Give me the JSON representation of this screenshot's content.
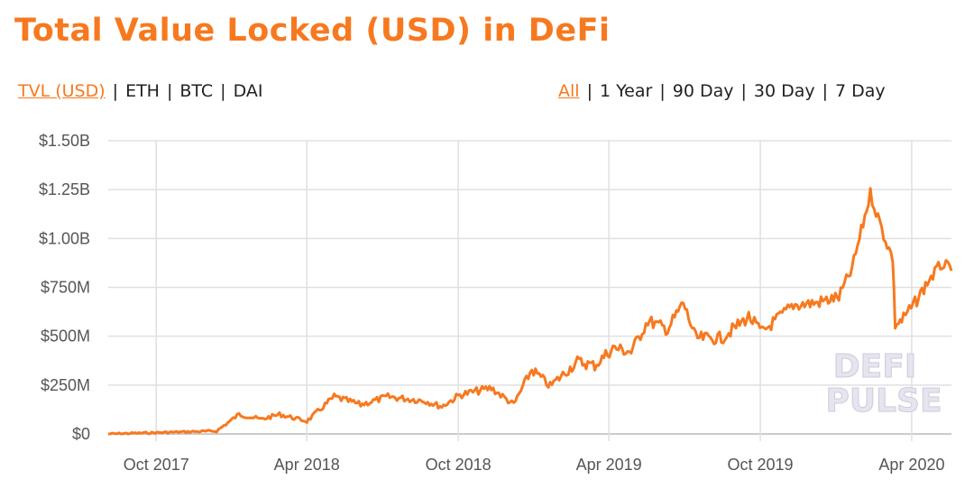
{
  "title": "Total Value Locked (USD) in DeFi",
  "metric_tabs": [
    "TVL (USD)",
    "ETH",
    "BTC",
    "DAI"
  ],
  "metric_active": 0,
  "range_tabs": [
    "All",
    "1 Year",
    "90 Day",
    "30 Day",
    "7 Day"
  ],
  "range_active": 0,
  "watermark": [
    "DEFI",
    "PULSE"
  ],
  "colors": {
    "accent": "#f7791f",
    "line": "#f7791f",
    "grid": "#e0e0e0"
  },
  "chart_data": {
    "type": "line",
    "title": "Total Value Locked (USD) in DeFi",
    "xlabel": "",
    "ylabel": "",
    "ylim": [
      0,
      1500
    ],
    "xlim": [
      "2017-08-04",
      "2020-05-19"
    ],
    "y_unit": "USD millions",
    "yticks": [
      0,
      250,
      500,
      750,
      1000,
      1250,
      1500
    ],
    "ytick_labels": [
      "$0",
      "$250M",
      "$500M",
      "$750M",
      "$1.00B",
      "$1.25B",
      "$1.50B"
    ],
    "xticks": [
      "2017-10-01",
      "2018-04-01",
      "2018-10-01",
      "2019-04-01",
      "2019-10-01",
      "2020-04-01"
    ],
    "xtick_labels": [
      "Oct 2017",
      "Apr 2018",
      "Oct 2018",
      "Apr 2019",
      "Oct 2019",
      "Apr 2020"
    ],
    "grid": true,
    "series": [
      {
        "x": [
          "2017-08-04",
          "2017-12-13",
          "2018-01-09",
          "2018-02-05",
          "2018-02-27",
          "2018-04-01",
          "2018-05-04",
          "2018-06-05",
          "2018-07-08",
          "2018-08-21",
          "2018-09-11",
          "2018-10-03",
          "2018-11-10",
          "2018-12-07",
          "2018-12-29",
          "2019-01-20",
          "2019-02-22",
          "2019-03-15",
          "2019-04-06",
          "2019-04-28",
          "2019-05-18",
          "2019-06-11",
          "2019-06-30",
          "2019-07-15",
          "2019-08-15",
          "2019-09-17",
          "2019-10-03",
          "2019-11-10",
          "2019-12-07",
          "2020-01-04",
          "2020-01-20",
          "2020-02-11",
          "2020-02-27",
          "2020-03-09",
          "2020-03-12",
          "2020-03-20",
          "2020-04-05",
          "2020-04-22",
          "2020-05-08",
          "2020-05-19"
        ],
        "values": [
          0,
          15,
          100,
          75,
          100,
          65,
          190,
          150,
          190,
          170,
          140,
          200,
          235,
          150,
          330,
          245,
          370,
          350,
          440,
          420,
          580,
          535,
          670,
          490,
          490,
          600,
          520,
          660,
          670,
          700,
          845,
          1230,
          1020,
          900,
          560,
          580,
          670,
          790,
          870,
          835
        ]
      }
    ]
  }
}
